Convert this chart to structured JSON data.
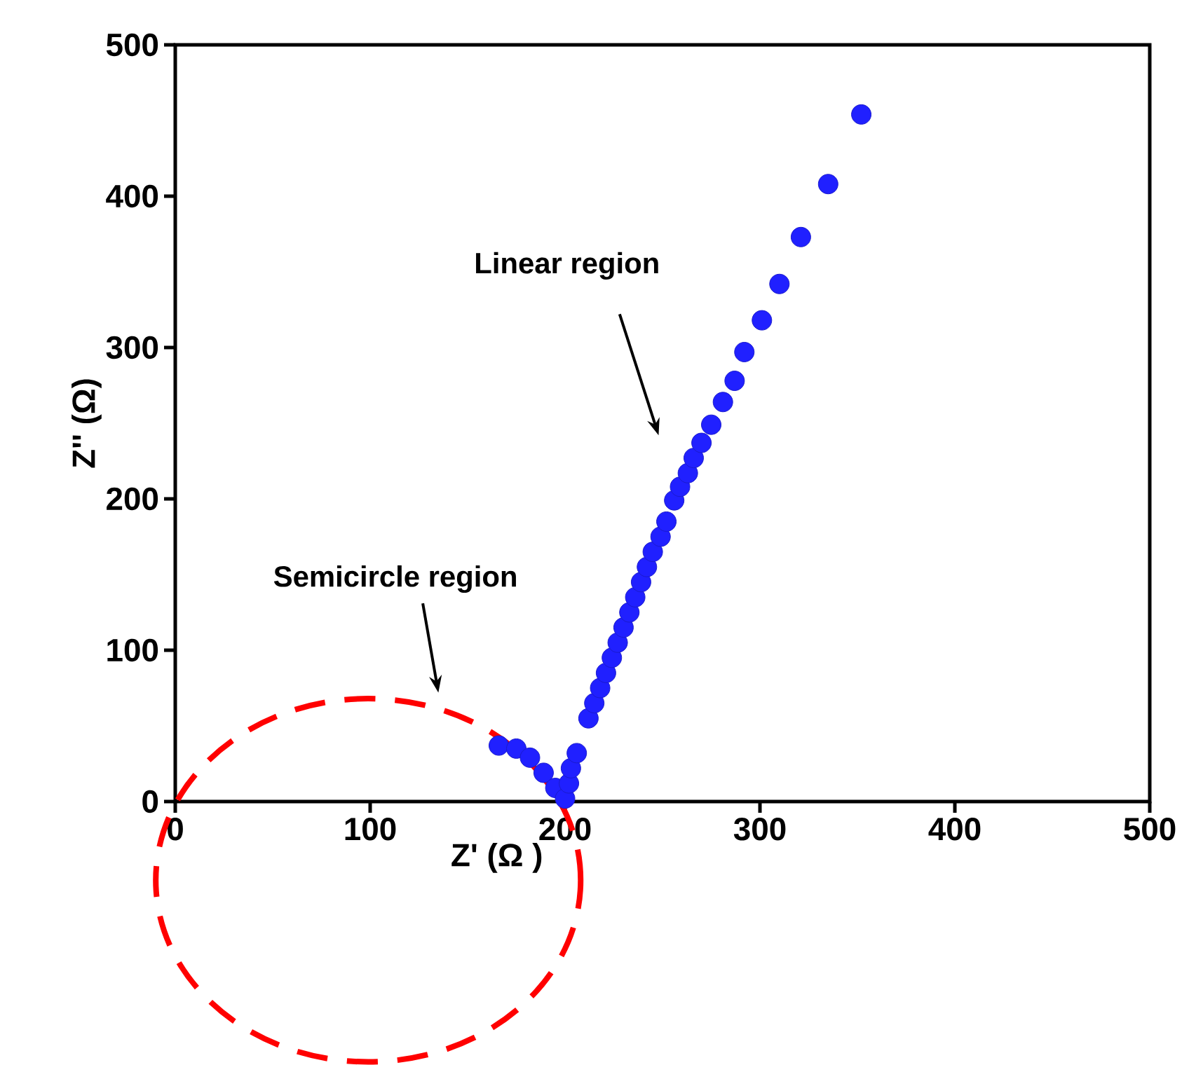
{
  "chart_data": {
    "type": "scatter",
    "xlabel": "Z' (Ω )",
    "ylabel": "Z'' (Ω)",
    "xlim": [
      0,
      500
    ],
    "ylim": [
      0,
      500
    ],
    "xticks": [
      0,
      100,
      200,
      300,
      400,
      500
    ],
    "yticks": [
      0,
      100,
      200,
      300,
      400,
      500
    ],
    "grid": false,
    "marker": "circle",
    "series": [
      {
        "color": "#2020ff",
        "x": [
          166,
          175,
          182,
          189,
          195,
          200,
          202,
          203,
          206,
          212,
          215,
          218,
          221,
          224,
          227,
          230,
          233,
          236,
          239,
          242,
          245,
          249,
          252,
          256,
          259,
          263,
          266,
          270,
          275,
          281,
          287,
          292,
          301,
          310,
          321,
          335,
          352
        ],
        "values": [
          37,
          35,
          29,
          19,
          9,
          2,
          12,
          22,
          32,
          55,
          65,
          75,
          85,
          95,
          105,
          115,
          125,
          135,
          145,
          155,
          165,
          175,
          185,
          199,
          208,
          217,
          227,
          237,
          249,
          264,
          278,
          297,
          318,
          342,
          373,
          408,
          454
        ]
      }
    ],
    "annotations": [
      "Linear region",
      "Semicircle region"
    ]
  }
}
